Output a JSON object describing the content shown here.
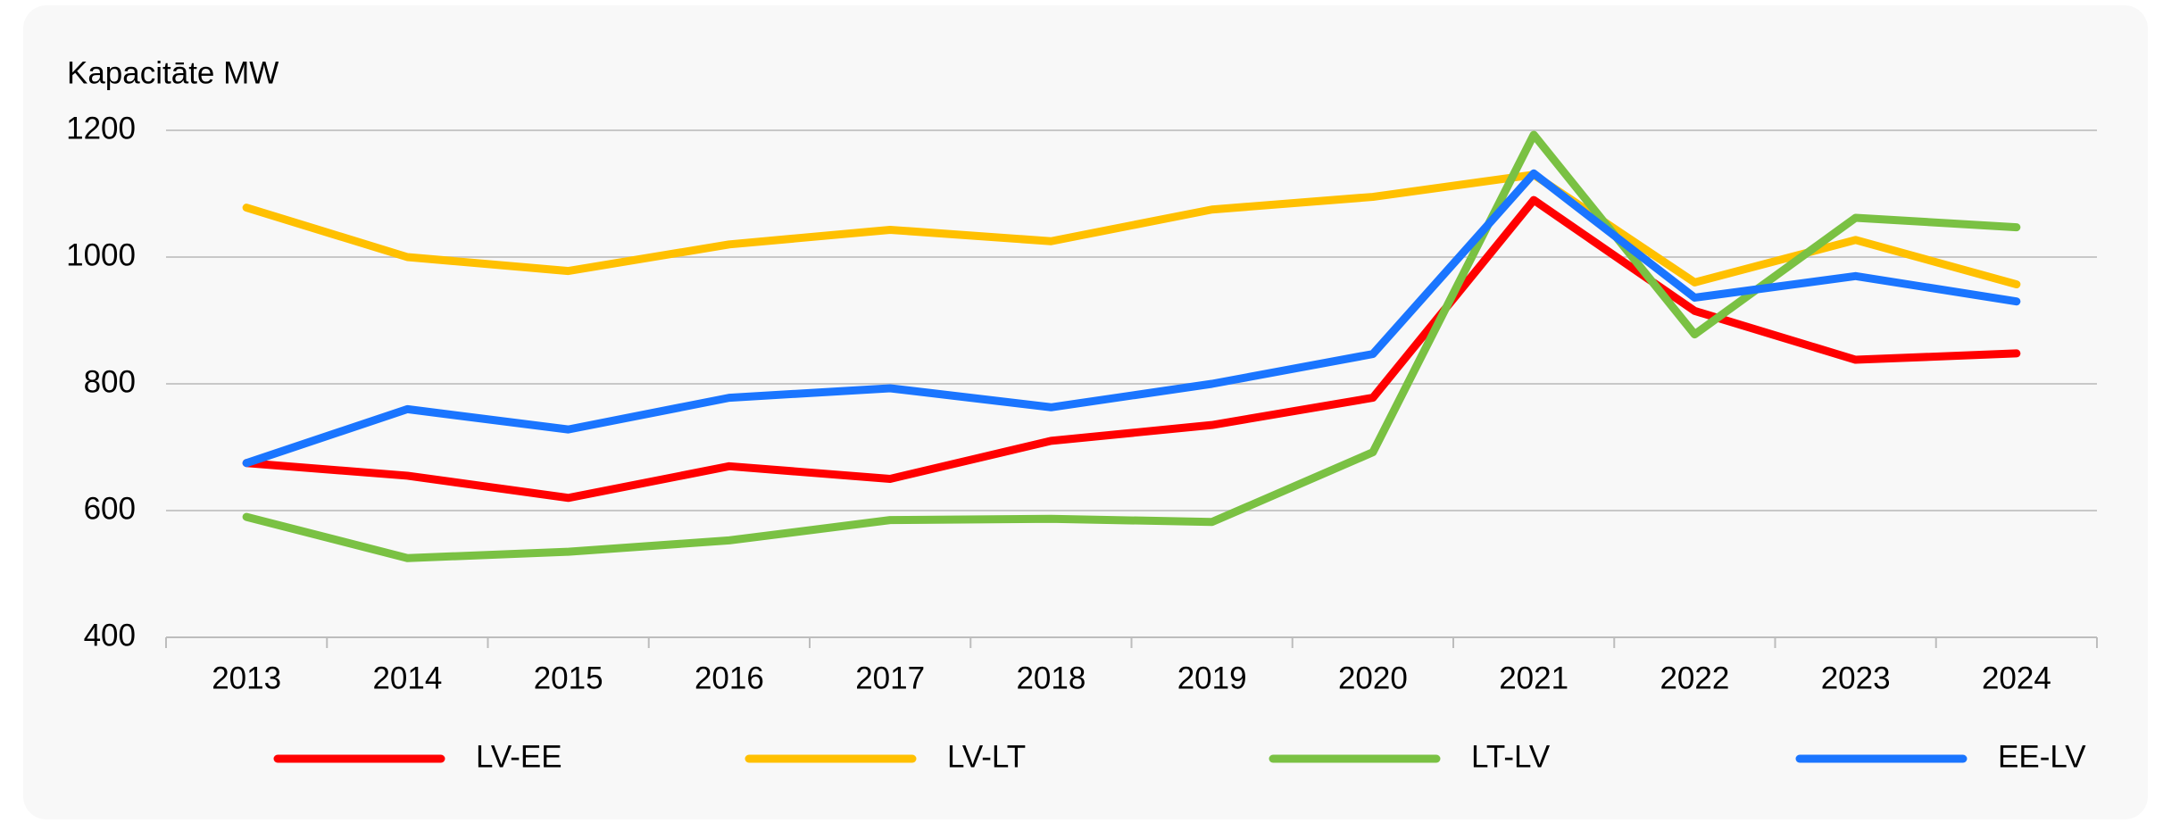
{
  "chart_data": {
    "type": "line",
    "title": "Kapacitāte MW",
    "categories": [
      "2013",
      "2014",
      "2015",
      "2016",
      "2017",
      "2018",
      "2019",
      "2020",
      "2021",
      "2022",
      "2023",
      "2024"
    ],
    "series": [
      {
        "name": "LV-EE",
        "color": "#ff0000",
        "values": [
          675,
          655,
          620,
          670,
          650,
          710,
          735,
          778,
          1090,
          915,
          838,
          848
        ]
      },
      {
        "name": "LV-LT",
        "color": "#ffc000",
        "values": [
          1078,
          1000,
          978,
          1020,
          1043,
          1025,
          1075,
          1095,
          1130,
          960,
          1027,
          957
        ]
      },
      {
        "name": "LT-LV",
        "color": "#7ac143",
        "values": [
          590,
          525,
          535,
          553,
          585,
          587,
          582,
          692,
          1193,
          878,
          1062,
          1047
        ]
      },
      {
        "name": "EE-LV",
        "color": "#1a75ff",
        "values": [
          675,
          760,
          728,
          778,
          793,
          763,
          800,
          847,
          1132,
          936,
          970,
          930
        ]
      }
    ],
    "ylim": [
      400,
      1200
    ],
    "yticks": [
      400,
      600,
      800,
      1000,
      1200
    ],
    "grid": true,
    "legend": "bottom"
  }
}
